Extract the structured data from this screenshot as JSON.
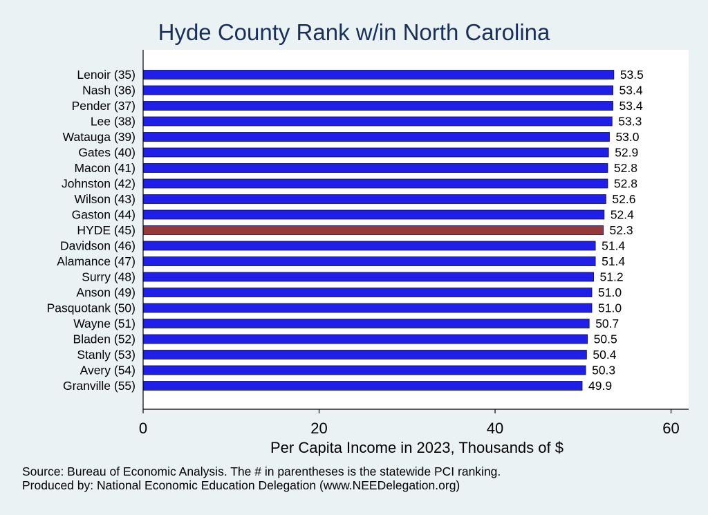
{
  "chart_data": {
    "type": "bar",
    "orientation": "horizontal",
    "title": "Hyde County Rank w/in North Carolina",
    "xlabel": "Per Capita Income in 2023, Thousands of $",
    "ylabel": "",
    "xlim": [
      0,
      62
    ],
    "xticks": [
      0,
      20,
      40,
      60
    ],
    "grid": false,
    "categories": [
      "Lenoir (35)",
      "Nash (36)",
      "Pender (37)",
      "Lee (38)",
      "Watauga (39)",
      "Gates (40)",
      "Macon (41)",
      "Johnston (42)",
      "Wilson (43)",
      "Gaston (44)",
      "HYDE (45)",
      "Davidson (46)",
      "Alamance (47)",
      "Surry (48)",
      "Anson (49)",
      "Pasquotank (50)",
      "Wayne (51)",
      "Bladen (52)",
      "Stanly (53)",
      "Avery (54)",
      "Granville (55)"
    ],
    "values": [
      53.5,
      53.4,
      53.4,
      53.3,
      53.0,
      52.9,
      52.8,
      52.8,
      52.6,
      52.4,
      52.3,
      51.4,
      51.4,
      51.2,
      51.0,
      51.0,
      50.7,
      50.5,
      50.4,
      50.3,
      49.9
    ],
    "value_labels": [
      "53.5",
      "53.4",
      "53.4",
      "53.3",
      "53.0",
      "52.9",
      "52.8",
      "52.8",
      "52.6",
      "52.4",
      "52.3",
      "51.4",
      "51.4",
      "51.2",
      "51.0",
      "51.0",
      "50.7",
      "50.5",
      "50.4",
      "50.3",
      "49.9"
    ],
    "highlight": "HYDE (45)",
    "colors": {
      "bar": "#1f1fe8",
      "highlight": "#943a3a",
      "background": "#eaf2f3",
      "plot_background": "#ffffff",
      "title": "#1a2f5a"
    }
  },
  "notes": {
    "source": "Source: Bureau of Economic Analysis. The # in parentheses is the statewide PCI ranking.",
    "produced_by": "Produced by: National Economic Education Delegation (www.NEEDelegation.org)"
  }
}
